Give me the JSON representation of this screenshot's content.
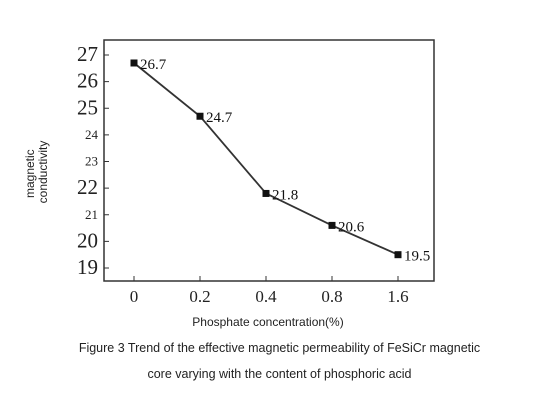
{
  "chart_data": {
    "type": "line",
    "x": [
      "0",
      "0.2",
      "0.4",
      "0.8",
      "1.6"
    ],
    "values": [
      26.7,
      24.7,
      21.8,
      20.6,
      19.5
    ],
    "data_labels": [
      "26.7",
      "24.7",
      "21.8",
      "20.6",
      "19.5"
    ],
    "y_ticks": [
      "27",
      "26",
      "25",
      "24",
      "23",
      "22",
      "21",
      "20",
      "19"
    ],
    "ylim": [
      19,
      27
    ],
    "xlabel": "Phosphate concentration(%)",
    "ylabel_line1": "magnetic",
    "ylabel_line2": "conductivity",
    "grid": false,
    "marker": "square",
    "color": "#333333"
  },
  "caption": {
    "line1": "Figure 3 Trend of the effective magnetic permeability of FeSiCr magnetic",
    "line2": "core varying with the content of phosphoric acid"
  }
}
